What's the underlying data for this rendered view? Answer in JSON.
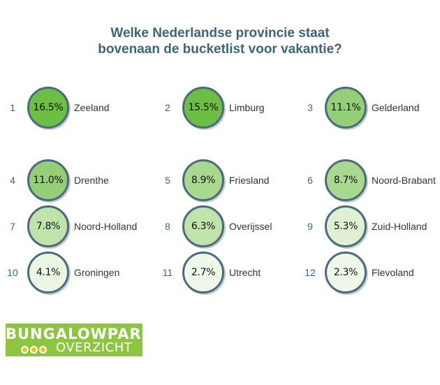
{
  "chart_data": {
    "type": "bubble-ranking",
    "title_lines": [
      "Welke Nederlandse provincie staat",
      "bovenaan de bucketlist voor vakantie?"
    ],
    "unit": "%",
    "items": [
      {
        "rank": "1",
        "label": "16.5%",
        "value": 16.5,
        "name": "Zeeland",
        "color": "#6cbe45"
      },
      {
        "rank": "2",
        "label": "15.5%",
        "value": 15.5,
        "name": "Limburg",
        "color": "#6cbe45"
      },
      {
        "rank": "3",
        "label": "11.1%",
        "value": 11.1,
        "name": "Gelderland",
        "color": "#94cf77"
      },
      {
        "rank": "4",
        "label": "11.0%",
        "value": 11.0,
        "name": "Drenthe",
        "color": "#94cf77"
      },
      {
        "rank": "5",
        "label": "8.9%",
        "value": 8.9,
        "name": "Friesland",
        "color": "#a8d98f"
      },
      {
        "rank": "6",
        "label": "8.7%",
        "value": 8.7,
        "name": "Noord-Brabant",
        "color": "#a8d98f"
      },
      {
        "rank": "7",
        "label": "7.8%",
        "value": 7.8,
        "name": "Noord-Holland",
        "color": "#bfe3ab"
      },
      {
        "rank": "8",
        "label": "6.3%",
        "value": 6.3,
        "name": "Overijssel",
        "color": "#bfe3ab"
      },
      {
        "rank": "9",
        "label": "5.3%",
        "value": 5.3,
        "name": "Zuid-Holland",
        "color": "#dff0d4"
      },
      {
        "rank": "10",
        "label": "4.1%",
        "value": 4.1,
        "name": "Groningen",
        "color": "#eaf5e2"
      },
      {
        "rank": "11",
        "label": "2.7%",
        "value": 2.7,
        "name": "Utrecht",
        "color": "#eef7e8"
      },
      {
        "rank": "12",
        "label": "2.3%",
        "value": 2.3,
        "name": "Flevoland",
        "color": "#eef7e8"
      }
    ]
  },
  "logo": {
    "line1": "BUNGALOWPARK",
    "line2": "OVERZICHT",
    "bg_color": "#8cc63f",
    "dot_color": "#f6c02a"
  }
}
